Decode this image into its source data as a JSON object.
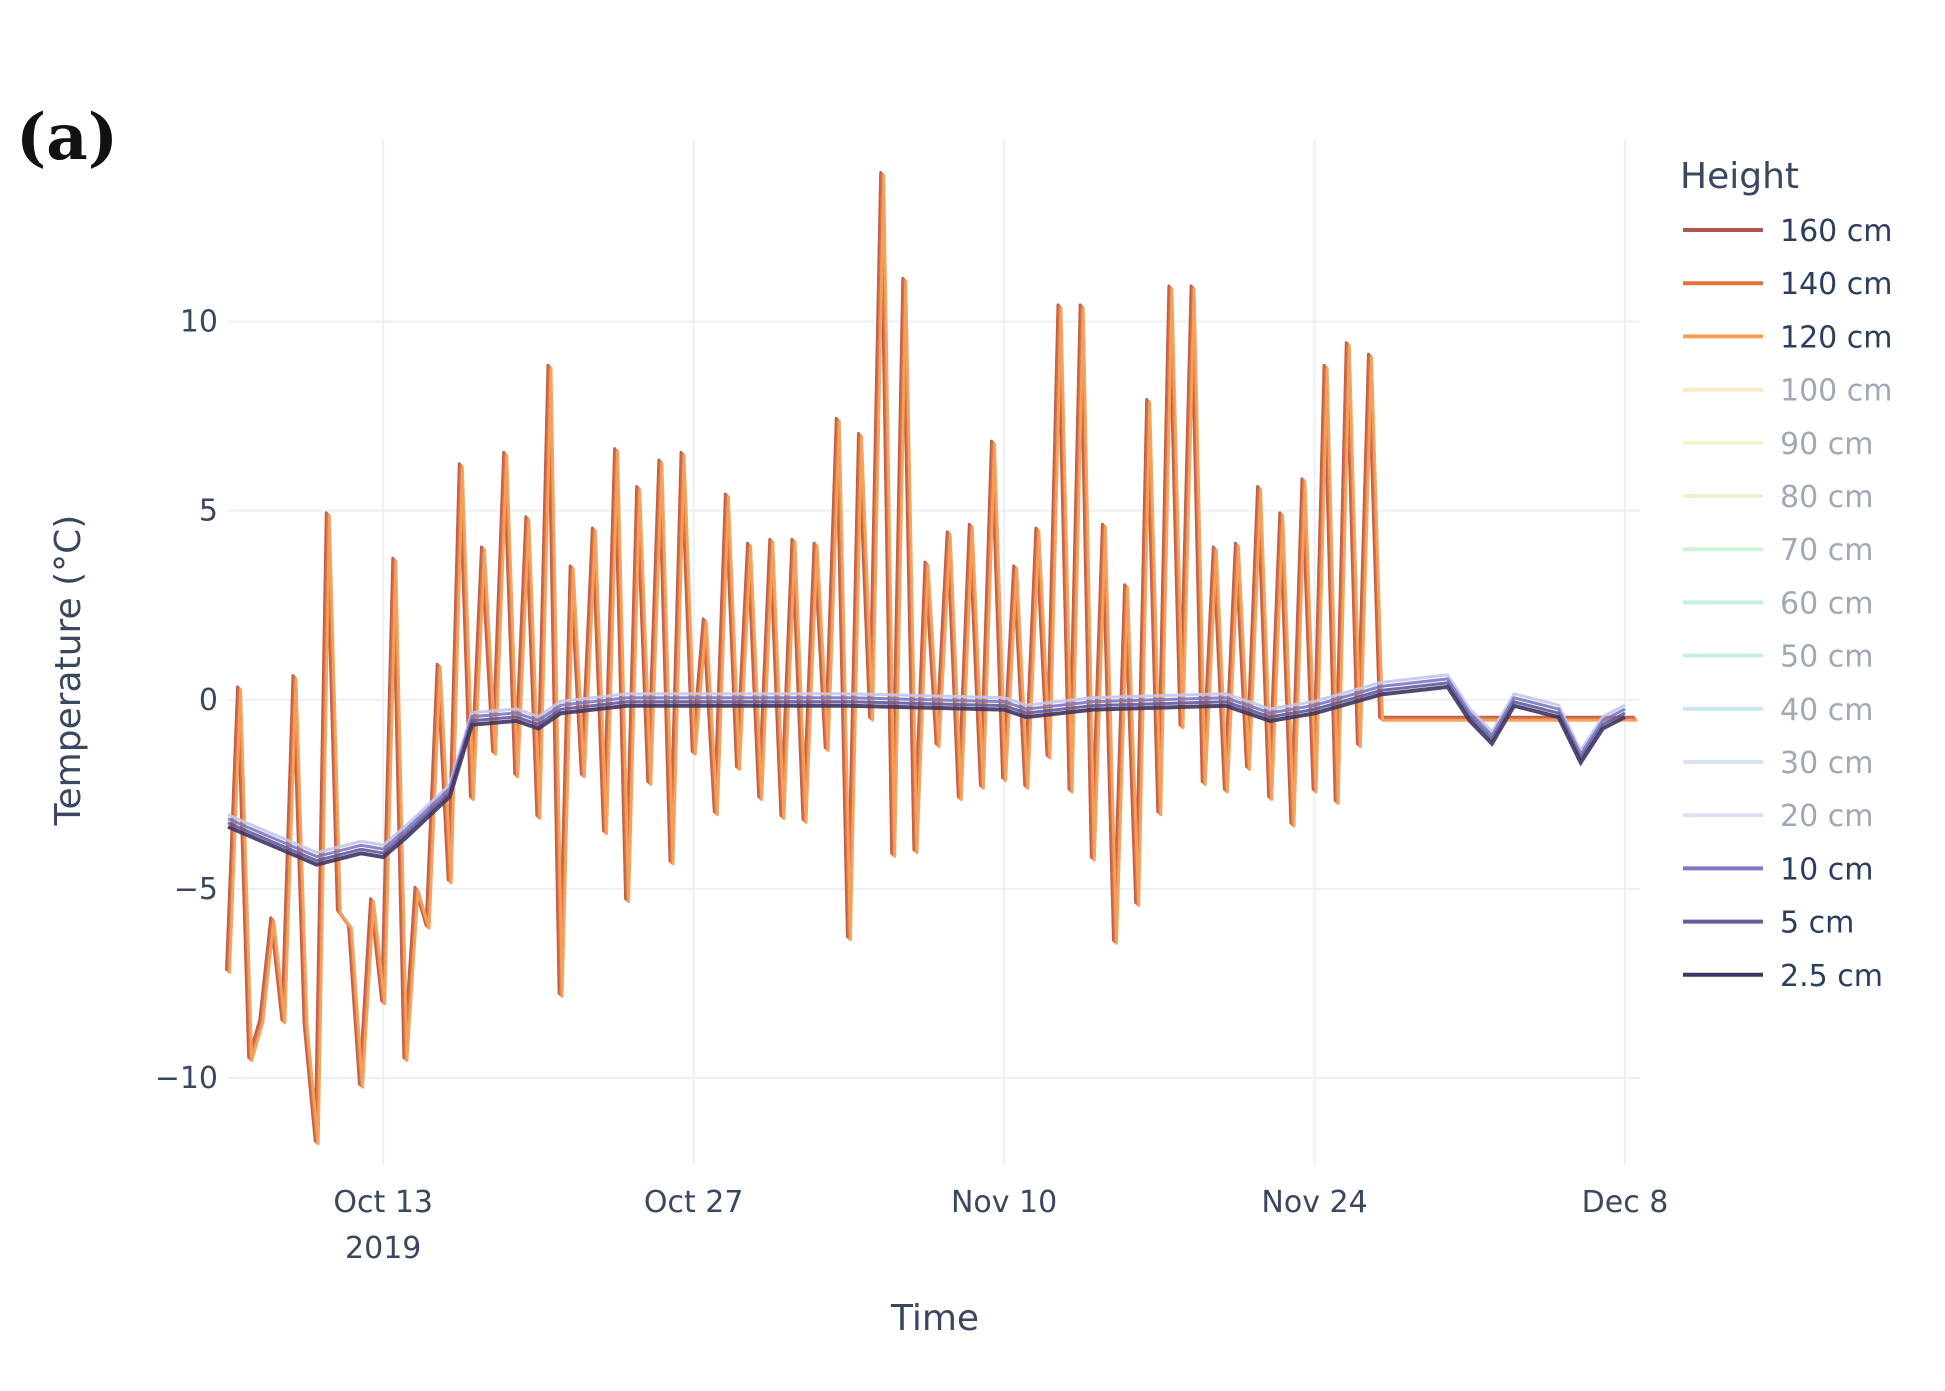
{
  "panel_label": "(a)",
  "chart_data": {
    "type": "line",
    "xlabel": "Time",
    "ylabel": "Temperature (°C)",
    "x_range": [
      "2019-10-06",
      "2019-12-08"
    ],
    "ylim": [
      -12.3,
      14.8
    ],
    "yticks": [
      -10,
      -5,
      0,
      5,
      10
    ],
    "ytick_labels": [
      "−10",
      "−5",
      "0",
      "5",
      "10"
    ],
    "xticks": [
      {
        "date": "2019-10-13",
        "label": "Oct 13",
        "sublabel": "2019"
      },
      {
        "date": "2019-10-27",
        "label": "Oct 27",
        "sublabel": ""
      },
      {
        "date": "2019-11-10",
        "label": "Nov 10",
        "sublabel": ""
      },
      {
        "date": "2019-11-24",
        "label": "Nov 24",
        "sublabel": ""
      },
      {
        "date": "2019-12-08",
        "label": "Dec 8",
        "sublabel": ""
      }
    ],
    "grid": true,
    "legend_title": "Height",
    "legend_placement": "right",
    "series": [
      {
        "name": "160 cm",
        "color": "#b0584f",
        "muted": false,
        "group": "air"
      },
      {
        "name": "140 cm",
        "color": "#e0703c",
        "muted": false,
        "group": "air"
      },
      {
        "name": "120 cm",
        "color": "#f5a05a",
        "muted": false,
        "group": "air"
      },
      {
        "name": "100 cm",
        "color": "#f7d79a",
        "muted": true,
        "group": "air"
      },
      {
        "name": "90 cm",
        "color": "#e9f0a0",
        "muted": true,
        "group": "air"
      },
      {
        "name": "80 cm",
        "color": "#cdeea0",
        "muted": true,
        "group": "air"
      },
      {
        "name": "70 cm",
        "color": "#a8ecb0",
        "muted": true,
        "group": "air"
      },
      {
        "name": "60 cm",
        "color": "#93e6c0",
        "muted": true,
        "group": "air"
      },
      {
        "name": "50 cm",
        "color": "#93e4dc",
        "muted": true,
        "group": "air"
      },
      {
        "name": "40 cm",
        "color": "#9cd8ea",
        "muted": true,
        "group": "air"
      },
      {
        "name": "30 cm",
        "color": "#b4cdea",
        "muted": true,
        "group": "air"
      },
      {
        "name": "20 cm",
        "color": "#c4c6ea",
        "muted": true,
        "group": "snow"
      },
      {
        "name": "10 cm",
        "color": "#7b78c4",
        "muted": false,
        "group": "snow"
      },
      {
        "name": "5 cm",
        "color": "#625c9e",
        "muted": false,
        "group": "snow"
      },
      {
        "name": "2.5 cm",
        "color": "#3f3564",
        "muted": false,
        "group": "snow"
      }
    ],
    "air_temperature_series": {
      "name": "140 cm",
      "x": [
        "2019-10-06",
        "2019-10-06T12:00",
        "2019-10-07",
        "2019-10-07T12:00",
        "2019-10-08",
        "2019-10-08T12:00",
        "2019-10-09",
        "2019-10-09T12:00",
        "2019-10-10",
        "2019-10-10T12:00",
        "2019-10-11",
        "2019-10-11T12:00",
        "2019-10-12",
        "2019-10-12T12:00",
        "2019-10-13",
        "2019-10-13T12:00",
        "2019-10-14",
        "2019-10-14T12:00",
        "2019-10-15",
        "2019-10-15T12:00",
        "2019-10-16",
        "2019-10-16T12:00",
        "2019-10-17",
        "2019-10-17T12:00",
        "2019-10-18",
        "2019-10-18T12:00",
        "2019-10-19",
        "2019-10-19T12:00",
        "2019-10-20",
        "2019-10-20T12:00",
        "2019-10-21",
        "2019-10-21T12:00",
        "2019-10-22",
        "2019-10-22T12:00",
        "2019-10-23",
        "2019-10-23T12:00",
        "2019-10-24",
        "2019-10-24T12:00",
        "2019-10-25",
        "2019-10-25T12:00",
        "2019-10-26",
        "2019-10-26T12:00",
        "2019-10-27",
        "2019-10-27T12:00",
        "2019-10-28",
        "2019-10-28T12:00",
        "2019-10-29",
        "2019-10-29T12:00",
        "2019-10-30",
        "2019-10-30T12:00",
        "2019-10-31",
        "2019-10-31T12:00",
        "2019-11-01",
        "2019-11-01T12:00",
        "2019-11-02",
        "2019-11-02T12:00",
        "2019-11-03",
        "2019-11-03T12:00",
        "2019-11-04",
        "2019-11-04T12:00",
        "2019-11-05",
        "2019-11-05T12:00",
        "2019-11-06",
        "2019-11-06T12:00",
        "2019-11-07",
        "2019-11-07T12:00",
        "2019-11-08",
        "2019-11-08T12:00",
        "2019-11-09",
        "2019-11-09T12:00",
        "2019-11-10",
        "2019-11-10T12:00",
        "2019-11-11",
        "2019-11-11T12:00",
        "2019-11-12",
        "2019-11-12T12:00",
        "2019-11-13",
        "2019-11-13T12:00",
        "2019-11-14",
        "2019-11-14T12:00",
        "2019-11-15",
        "2019-11-15T12:00",
        "2019-11-16",
        "2019-11-16T12:00",
        "2019-11-17",
        "2019-11-17T12:00",
        "2019-11-18",
        "2019-11-18T12:00",
        "2019-11-19",
        "2019-11-19T12:00",
        "2019-11-20",
        "2019-11-20T12:00",
        "2019-11-21",
        "2019-11-21T12:00",
        "2019-11-22",
        "2019-11-22T12:00",
        "2019-11-23",
        "2019-11-23T12:00",
        "2019-11-24",
        "2019-11-24T12:00",
        "2019-11-25",
        "2019-11-25T12:00",
        "2019-11-26",
        "2019-11-26T12:00",
        "2019-11-27",
        "2019-11-27T12:00",
        "2019-11-28",
        "2019-11-28T12:00",
        "2019-11-29",
        "2019-11-29T12:00",
        "2019-11-30",
        "2019-11-30T12:00",
        "2019-12-01",
        "2019-12-01T12:00",
        "2019-12-02",
        "2019-12-02T12:00",
        "2019-12-03",
        "2019-12-03T12:00",
        "2019-12-04",
        "2019-12-04T12:00",
        "2019-12-05",
        "2019-12-05T12:00",
        "2019-12-06",
        "2019-12-06T12:00",
        "2019-12-07",
        "2019-12-07T12:00",
        "2019-12-08",
        "2019-12-08T12:00"
      ],
      "y": [
        -7.2,
        0.3,
        -9.5,
        -8.5,
        -5.8,
        -8.5,
        0.6,
        -8.6,
        -11.7,
        4.9,
        -5.6,
        -6.0,
        -10.2,
        -5.3,
        -8.0,
        3.7,
        -9.5,
        -5.0,
        -6.0,
        0.9,
        -4.8,
        6.2,
        -2.6,
        4.0,
        -1.4,
        6.5,
        -2.0,
        4.8,
        -3.1,
        8.8,
        -7.8,
        3.5,
        -2.0,
        4.5,
        -3.5,
        6.6,
        -5.3,
        5.6,
        -2.2,
        6.3,
        -4.3,
        6.5,
        -1.4,
        2.1,
        -3.0,
        5.4,
        -1.8,
        4.1,
        -2.6,
        4.2,
        -3.1,
        4.2,
        -3.2,
        4.1,
        -1.3,
        7.4,
        -6.3,
        7.0,
        -0.5,
        13.9,
        -4.1,
        11.1,
        -4.0,
        3.6,
        -1.2,
        4.4,
        -2.6,
        4.6,
        -2.3,
        6.8,
        -2.1,
        3.5,
        -2.3,
        4.5,
        -1.5,
        10.4,
        -2.4,
        10.4,
        -4.2,
        4.6,
        -6.4,
        3.0,
        -5.4,
        7.9,
        -3.0,
        10.9,
        -0.7,
        10.9,
        -2.2,
        4.0,
        -2.4,
        4.1,
        -1.8,
        5.6,
        -2.6,
        4.9,
        -3.3,
        5.8,
        -2.4,
        8.8,
        -2.7,
        9.4,
        -1.2,
        9.1,
        -0.5,
        -0.5,
        -0.5,
        -0.5,
        -0.5,
        -0.5,
        -0.5,
        -0.5,
        -0.5,
        -0.5,
        -0.5,
        -0.5,
        -0.5,
        -0.5,
        -0.5,
        -0.5,
        -0.5,
        -0.5,
        -0.5,
        -0.5,
        -0.5,
        -0.5,
        -0.5,
        -0.5
      ]
    }
  }
}
